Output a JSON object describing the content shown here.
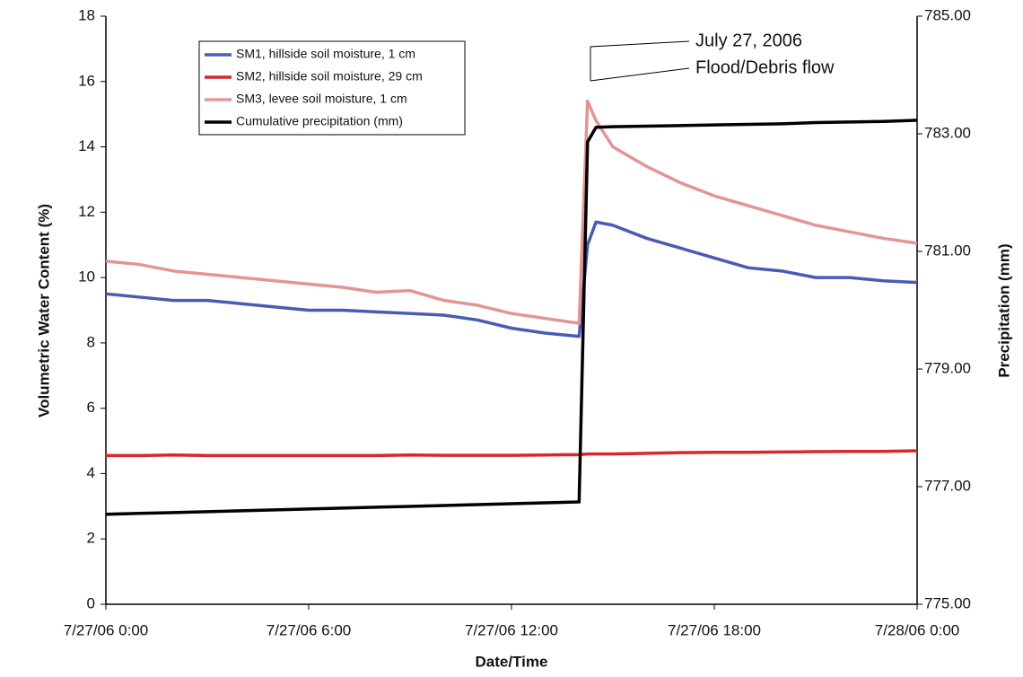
{
  "chart_data": {
    "type": "line",
    "x_label": "Date/Time",
    "y_label": "Volumetric Water Content (%)",
    "y2_label": "Precipitation (mm)",
    "annotations": [
      "July 27, 2006",
      "Flood/Debris flow"
    ],
    "x": [
      "7/27/06 0:00",
      "7/27/06 1:00",
      "7/27/06 2:00",
      "7/27/06 3:00",
      "7/27/06 4:00",
      "7/27/06 5:00",
      "7/27/06 6:00",
      "7/27/06 7:00",
      "7/27/06 8:00",
      "7/27/06 9:00",
      "7/27/06 10:00",
      "7/27/06 11:00",
      "7/27/06 12:00",
      "7/27/06 13:00",
      "7/27/06 14:00",
      "7/27/06 14:15",
      "7/27/06 14:30",
      "7/27/06 15:00",
      "7/27/06 16:00",
      "7/27/06 17:00",
      "7/27/06 18:00",
      "7/27/06 19:00",
      "7/27/06 20:00",
      "7/27/06 21:00",
      "7/27/06 22:00",
      "7/27/06 23:00",
      "7/28/06 0:00"
    ],
    "xlim": [
      "7/27/06 0:00",
      "7/28/06 0:00"
    ],
    "xticks": [
      "7/27/06 0:00",
      "7/27/06 6:00",
      "7/27/06 12:00",
      "7/27/06 18:00",
      "7/28/06 0:00"
    ],
    "ylim": [
      0,
      18
    ],
    "yticks": [
      0,
      2,
      4,
      6,
      8,
      10,
      12,
      14,
      16,
      18
    ],
    "y2lim": [
      775,
      785
    ],
    "y2ticks": [
      {
        "value": 775,
        "label": "775.00"
      },
      {
        "value": 777,
        "label": "777.00"
      },
      {
        "value": 779,
        "label": "779.00"
      },
      {
        "value": 781,
        "label": "781.00"
      },
      {
        "value": 783,
        "label": "783.00"
      },
      {
        "value": 785,
        "label": "785.00"
      }
    ],
    "series": [
      {
        "name": "SM1, hillside soil moisture, 1 cm",
        "color": "#4a5bb5",
        "values": [
          9.5,
          9.4,
          9.3,
          9.3,
          9.2,
          9.1,
          9.0,
          9.0,
          8.95,
          8.9,
          8.85,
          8.7,
          8.45,
          8.3,
          8.2,
          11.0,
          11.7,
          11.6,
          11.2,
          10.9,
          10.6,
          10.3,
          10.2,
          10.0,
          10.0,
          9.9,
          9.85
        ]
      },
      {
        "name": "SM2, hillside soil moisture, 29 cm",
        "color": "#d8262b",
        "values": [
          4.55,
          4.55,
          4.57,
          4.55,
          4.55,
          4.55,
          4.55,
          4.55,
          4.55,
          4.57,
          4.56,
          4.56,
          4.56,
          4.57,
          4.58,
          4.6,
          4.6,
          4.6,
          4.62,
          4.64,
          4.65,
          4.65,
          4.66,
          4.67,
          4.68,
          4.68,
          4.7
        ]
      },
      {
        "name": "SM3, levee soil moisture, 1 cm",
        "color": "#e39596",
        "values": [
          10.5,
          10.4,
          10.2,
          10.1,
          10.0,
          9.9,
          9.8,
          9.7,
          9.55,
          9.6,
          9.3,
          9.15,
          8.9,
          8.75,
          8.6,
          15.4,
          14.8,
          14.0,
          13.4,
          12.9,
          12.5,
          12.2,
          11.9,
          11.6,
          11.4,
          11.2,
          11.05
        ]
      },
      {
        "name": "Cumulative precipitation (mm)",
        "color": "#000000",
        "axis": "y2",
        "values": [
          776.53,
          776.545,
          776.56,
          776.575,
          776.59,
          776.605,
          776.62,
          776.635,
          776.65,
          776.665,
          776.68,
          776.695,
          776.71,
          776.725,
          776.74,
          782.86,
          783.11,
          783.12,
          783.13,
          783.14,
          783.15,
          783.16,
          783.17,
          783.19,
          783.2,
          783.21,
          783.23
        ]
      }
    ]
  }
}
